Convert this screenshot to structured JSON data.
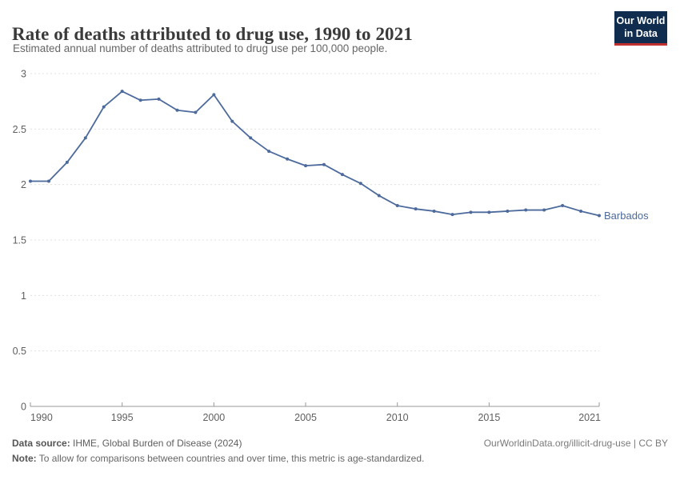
{
  "header": {
    "title": "Rate of deaths attributed to drug use, 1990 to 2021",
    "subtitle": "Estimated annual number of deaths attributed to drug use per 100,000 people.",
    "logo": {
      "line1": "Our World",
      "line2": "in Data",
      "bg_color": "#102d50",
      "accent_color": "#c0302c"
    }
  },
  "chart_data": {
    "type": "line",
    "title": "Rate of deaths attributed to drug use, 1990 to 2021",
    "subtitle": "Estimated annual number of deaths attributed to drug use per 100,000 people.",
    "xlabel": "",
    "ylabel": "",
    "xlim": [
      1990,
      2021
    ],
    "ylim": [
      0,
      3
    ],
    "x_ticks": [
      1990,
      1995,
      2000,
      2005,
      2010,
      2015,
      2021
    ],
    "y_ticks": [
      0,
      0.5,
      1,
      1.5,
      2,
      2.5,
      3
    ],
    "y_tick_labels": [
      "0",
      "0.5",
      "1",
      "1.5",
      "2",
      "2.5",
      "3"
    ],
    "grid": "horizontal-dashed",
    "legend_position": "end-of-line-label",
    "series": [
      {
        "name": "Barbados",
        "color": "#4c6a9c",
        "x": [
          1990,
          1991,
          1992,
          1993,
          1994,
          1995,
          1996,
          1997,
          1998,
          1999,
          2000,
          2001,
          2002,
          2003,
          2004,
          2005,
          2006,
          2007,
          2008,
          2009,
          2010,
          2011,
          2012,
          2013,
          2014,
          2015,
          2016,
          2017,
          2018,
          2019,
          2020,
          2021
        ],
        "values": [
          2.03,
          2.03,
          2.2,
          2.42,
          2.7,
          2.84,
          2.76,
          2.77,
          2.67,
          2.65,
          2.81,
          2.57,
          2.42,
          2.3,
          2.23,
          2.17,
          2.18,
          2.09,
          2.01,
          1.9,
          1.81,
          1.78,
          1.76,
          1.73,
          1.75,
          1.75,
          1.76,
          1.77,
          1.77,
          1.81,
          1.76,
          1.72
        ]
      }
    ]
  },
  "footer": {
    "datasource_label": "Data source:",
    "datasource_value": " IHME, Global Burden of Disease (2024)",
    "attribution": "OurWorldinData.org/illicit-drug-use | CC BY",
    "note_label": "Note:",
    "note_value": " To allow for comparisons between countries and over time, this metric is age-standardized."
  }
}
